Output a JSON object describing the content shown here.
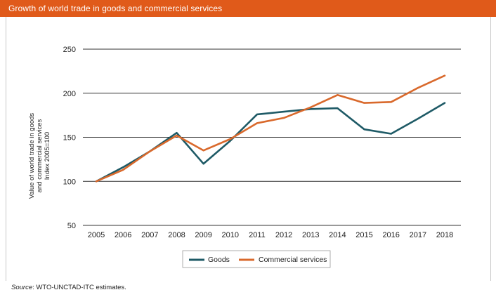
{
  "header": {
    "title": "Growth of world trade in goods and commercial services"
  },
  "footer": {
    "source_label": "Source",
    "source_text": ": WTO-UNCTAD-ITC estimates."
  },
  "colors": {
    "header_bg": "#e05a1a",
    "goods": "#1e5a66",
    "services": "#d9692c",
    "grid": "#333333"
  },
  "chart_data": {
    "type": "line",
    "title": "Growth of world trade in goods and commercial services",
    "ylabel": "Value of world trade in goods and commercial services Index 2005=100",
    "ylabel_lines": [
      "Value of world trade in goods",
      "and commercial services",
      "Index 2005=100"
    ],
    "xlabel": "",
    "ylim": [
      50,
      250
    ],
    "yticks": [
      50,
      100,
      150,
      200,
      250
    ],
    "grid": true,
    "legend_position": "bottom-center",
    "categories": [
      "2005",
      "2006",
      "2007",
      "2008",
      "2009",
      "2010",
      "2011",
      "2012",
      "2013",
      "2014",
      "2015",
      "2016",
      "2017",
      "2018"
    ],
    "series": [
      {
        "name": "Goods",
        "color": "#1e5a66",
        "values": [
          100,
          116,
          134,
          155,
          120,
          146,
          176,
          179,
          182,
          183,
          159,
          154,
          171,
          189
        ]
      },
      {
        "name": "Commercial services",
        "color": "#d9692c",
        "values": [
          100,
          113,
          134,
          152,
          135,
          148,
          166,
          172,
          184,
          198,
          189,
          190,
          206,
          220
        ]
      }
    ]
  }
}
